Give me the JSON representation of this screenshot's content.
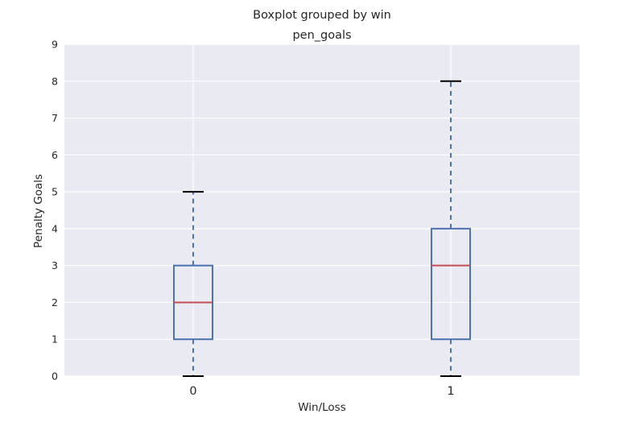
{
  "chart_data": {
    "type": "boxplot",
    "suptitle": "Boxplot grouped by win",
    "title": "pen_goals",
    "xlabel": "Win/Loss",
    "ylabel": "Penalty Goals",
    "ylim": [
      0,
      9
    ],
    "yticks": [
      "0",
      "1",
      "2",
      "3",
      "4",
      "5",
      "6",
      "7",
      "8",
      "9"
    ],
    "categories": [
      "0",
      "1"
    ],
    "boxes": [
      {
        "category": "0",
        "whisker_low": 0,
        "q1": 1,
        "median": 2,
        "q3": 3,
        "whisker_high": 5
      },
      {
        "category": "1",
        "whisker_low": 0,
        "q1": 1,
        "median": 3,
        "q3": 4,
        "whisker_high": 8
      }
    ],
    "grid": true,
    "colors": {
      "background": "#eaeaf2",
      "grid": "#ffffff",
      "box": "#4c72b0",
      "median": "#c44e52",
      "cap": "#000000",
      "text": "#262626"
    }
  }
}
